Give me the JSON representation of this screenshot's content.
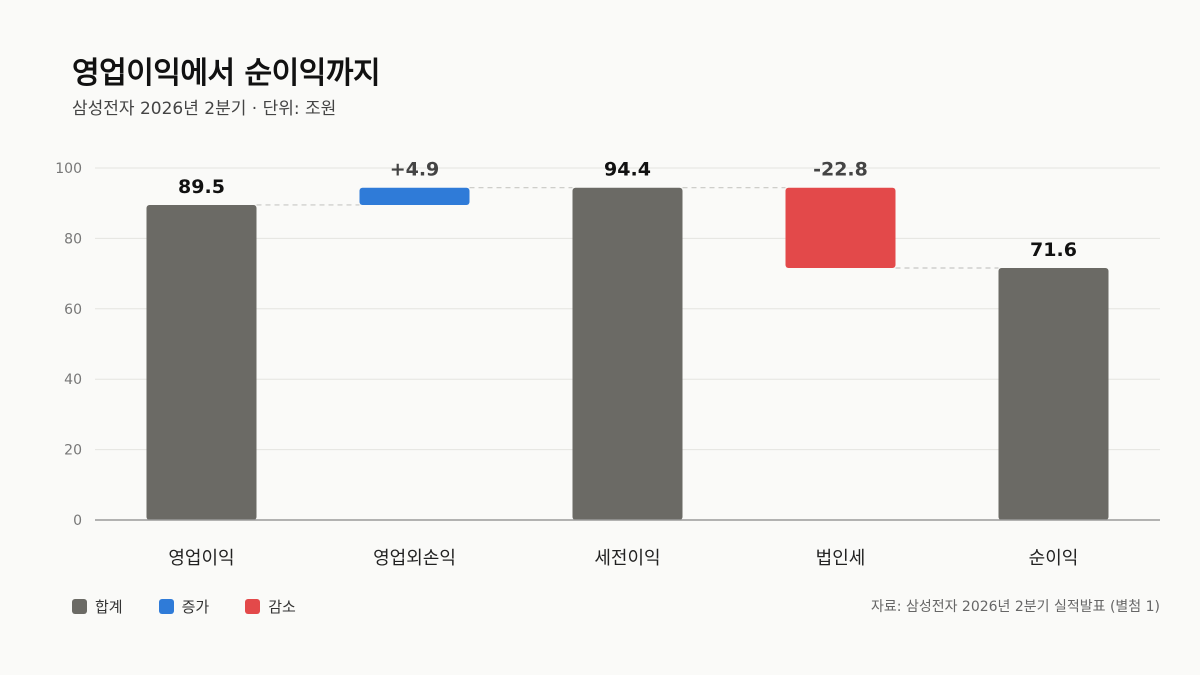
{
  "title": "영업이익에서 순이익까지",
  "subtitle": "삼성전자 2026년 2분기 · 단위: 조원",
  "source": "자료: 삼성전자 2026년 2분기 실적발표 (별첨 1)",
  "colors": {
    "total": "#6b6a65",
    "increase": "#2f7bd8",
    "decrease": "#e3494a",
    "grid": "#e4e4e0",
    "axis": "#999999",
    "connector": "#c8c8c4"
  },
  "legend": [
    {
      "label": "합계",
      "kind": "total"
    },
    {
      "label": "증가",
      "kind": "increase"
    },
    {
      "label": "감소",
      "kind": "decrease"
    }
  ],
  "chart_data": {
    "type": "bar",
    "subtype": "waterfall",
    "categories": [
      "영업이익",
      "영업외손익",
      "세전이익",
      "법인세",
      "순이익"
    ],
    "values": [
      89.5,
      4.9,
      94.4,
      -22.8,
      71.6
    ],
    "kinds": [
      "total",
      "increase",
      "total",
      "decrease",
      "total"
    ],
    "data_labels": [
      "89.5",
      "+4.9",
      "94.4",
      "-22.8",
      "71.6"
    ],
    "ylim": [
      0,
      100
    ],
    "yticks": [
      0,
      20,
      40,
      60,
      80,
      100
    ],
    "grid": true,
    "legend_position": "bottom-left"
  }
}
